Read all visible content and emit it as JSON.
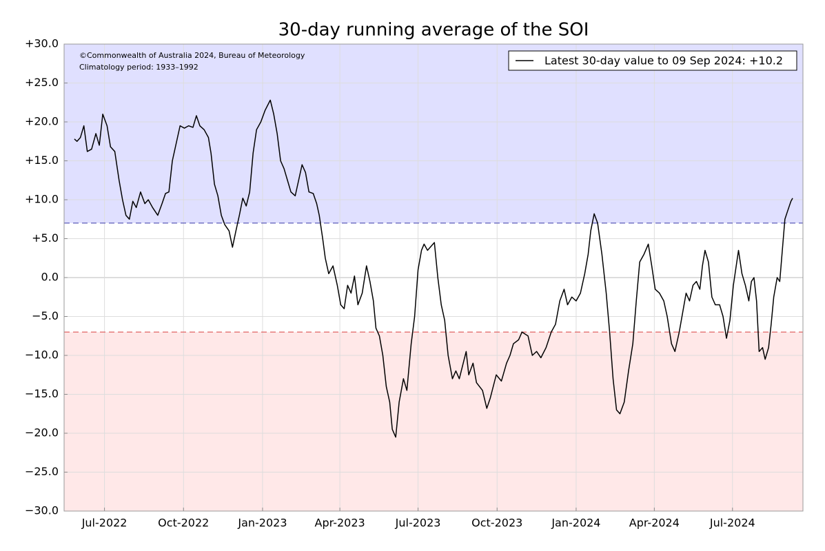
{
  "chart_data": {
    "type": "line",
    "title": "30-day running average of the SOI",
    "annotations": [
      "©Commonwealth of Australia 2024, Bureau of Meteorology",
      "Climatology period: 1933–1992"
    ],
    "legend": "upper right",
    "grid": true,
    "thresholds": [
      {
        "value": 7,
        "color": "#5a5ab8",
        "fill": "#e0e0ff",
        "side": "above"
      },
      {
        "value": -7,
        "color": "#e06060",
        "fill": "#ffe8e8",
        "side": "below"
      }
    ],
    "xlim": [
      "2022-05-15",
      "2024-09-21"
    ],
    "xticks": [
      {
        "value": "2022-07-01",
        "label": "Jul-2022"
      },
      {
        "value": "2022-10-01",
        "label": "Oct-2022"
      },
      {
        "value": "2023-01-01",
        "label": "Jan-2023"
      },
      {
        "value": "2023-04-01",
        "label": "Apr-2023"
      },
      {
        "value": "2023-07-01",
        "label": "Jul-2023"
      },
      {
        "value": "2023-10-01",
        "label": "Oct-2023"
      },
      {
        "value": "2024-01-01",
        "label": "Jan-2024"
      },
      {
        "value": "2024-04-01",
        "label": "Apr-2024"
      },
      {
        "value": "2024-07-01",
        "label": "Jul-2024"
      }
    ],
    "ylim": [
      -30,
      30
    ],
    "yticks": [
      {
        "value": 30,
        "label": "+30.0"
      },
      {
        "value": 25,
        "label": "+25.0"
      },
      {
        "value": 20,
        "label": "+20.0"
      },
      {
        "value": 15,
        "label": "+15.0"
      },
      {
        "value": 10,
        "label": "+10.0"
      },
      {
        "value": 5,
        "label": "+5.0"
      },
      {
        "value": 0,
        "label": "0.0"
      },
      {
        "value": -5,
        "label": "−5.0"
      },
      {
        "value": -10,
        "label": "−10.0"
      },
      {
        "value": -15,
        "label": "−15.0"
      },
      {
        "value": -20,
        "label": "−20.0"
      },
      {
        "value": -25,
        "label": "−25.0"
      },
      {
        "value": -30,
        "label": "−30.0"
      }
    ],
    "x": [
      "2022-05-27",
      "2022-05-30",
      "2022-06-03",
      "2022-06-07",
      "2022-06-11",
      "2022-06-16",
      "2022-06-21",
      "2022-06-25",
      "2022-06-29",
      "2022-07-04",
      "2022-07-08",
      "2022-07-13",
      "2022-07-18",
      "2022-07-22",
      "2022-07-26",
      "2022-07-30",
      "2022-08-03",
      "2022-08-07",
      "2022-08-12",
      "2022-08-17",
      "2022-08-21",
      "2022-08-26",
      "2022-09-01",
      "2022-09-06",
      "2022-09-10",
      "2022-09-14",
      "2022-09-18",
      "2022-09-22",
      "2022-09-27",
      "2022-10-02",
      "2022-10-07",
      "2022-10-12",
      "2022-10-16",
      "2022-10-20",
      "2022-10-25",
      "2022-10-30",
      "2022-11-02",
      "2022-11-06",
      "2022-11-10",
      "2022-11-14",
      "2022-11-18",
      "2022-11-23",
      "2022-11-27",
      "2022-12-01",
      "2022-12-05",
      "2022-12-09",
      "2022-12-13",
      "2022-12-17",
      "2022-12-21",
      "2022-12-25",
      "2022-12-30",
      "2023-01-04",
      "2023-01-10",
      "2023-01-14",
      "2023-01-18",
      "2023-01-22",
      "2023-01-26",
      "2023-01-30",
      "2023-02-03",
      "2023-02-08",
      "2023-02-12",
      "2023-02-16",
      "2023-02-20",
      "2023-02-24",
      "2023-03-01",
      "2023-03-05",
      "2023-03-08",
      "2023-03-12",
      "2023-03-15",
      "2023-03-19",
      "2023-03-24",
      "2023-03-29",
      "2023-04-02",
      "2023-04-06",
      "2023-04-10",
      "2023-04-14",
      "2023-04-18",
      "2023-04-22",
      "2023-04-27",
      "2023-05-02",
      "2023-05-06",
      "2023-05-10",
      "2023-05-13",
      "2023-05-17",
      "2023-05-21",
      "2023-05-25",
      "2023-05-29",
      "2023-06-01",
      "2023-06-05",
      "2023-06-09",
      "2023-06-14",
      "2023-06-18",
      "2023-06-23",
      "2023-06-27",
      "2023-07-01",
      "2023-07-05",
      "2023-07-08",
      "2023-07-12",
      "2023-07-20",
      "2023-07-24",
      "2023-07-28",
      "2023-08-01",
      "2023-08-05",
      "2023-08-10",
      "2023-08-14",
      "2023-08-18",
      "2023-08-26",
      "2023-08-29",
      "2023-09-03",
      "2023-09-07",
      "2023-09-14",
      "2023-09-19",
      "2023-09-23",
      "2023-09-30",
      "2023-10-06",
      "2023-10-12",
      "2023-10-16",
      "2023-10-20",
      "2023-10-26",
      "2023-10-30",
      "2023-11-06",
      "2023-11-11",
      "2023-11-16",
      "2023-11-21",
      "2023-11-27",
      "2023-12-03",
      "2023-12-08",
      "2023-12-13",
      "2023-12-18",
      "2023-12-22",
      "2023-12-27",
      "2024-01-01",
      "2024-01-06",
      "2024-01-11",
      "2024-01-15",
      "2024-01-18",
      "2024-01-22",
      "2024-01-26",
      "2024-01-31",
      "2024-02-05",
      "2024-02-09",
      "2024-02-13",
      "2024-02-17",
      "2024-02-21",
      "2024-02-26",
      "2024-03-02",
      "2024-03-07",
      "2024-03-11",
      "2024-03-15",
      "2024-03-20",
      "2024-03-25",
      "2024-03-29",
      "2024-04-02",
      "2024-04-07",
      "2024-04-12",
      "2024-04-16",
      "2024-04-21",
      "2024-04-25",
      "2024-04-30",
      "2024-05-04",
      "2024-05-08",
      "2024-05-12",
      "2024-05-16",
      "2024-05-20",
      "2024-05-24",
      "2024-05-27",
      "2024-05-30",
      "2024-06-03",
      "2024-06-07",
      "2024-06-11",
      "2024-06-16",
      "2024-06-20",
      "2024-06-24",
      "2024-06-28",
      "2024-07-02",
      "2024-07-08",
      "2024-07-12",
      "2024-07-16",
      "2024-07-20",
      "2024-07-23",
      "2024-07-26",
      "2024-07-29",
      "2024-08-01",
      "2024-08-05",
      "2024-08-08",
      "2024-08-12",
      "2024-08-15",
      "2024-08-18",
      "2024-08-22",
      "2024-08-25",
      "2024-08-28",
      "2024-08-31",
      "2024-09-03",
      "2024-09-07",
      "2024-09-09"
    ],
    "series": [
      {
        "name": "Latest 30-day value to 09 Sep 2024: +10.2",
        "color": "#000000",
        "values": [
          17.8,
          17.5,
          18,
          19.5,
          16.2,
          16.5,
          18.5,
          17,
          21,
          19.5,
          16.8,
          16.2,
          12.5,
          10,
          8,
          7.5,
          9.8,
          9,
          11,
          9.5,
          10,
          9,
          8,
          9.5,
          10.8,
          11,
          15,
          17,
          19.5,
          19.2,
          19.5,
          19.3,
          20.8,
          19.5,
          19,
          18,
          16,
          12,
          10.5,
          8,
          6.8,
          6,
          3.9,
          6,
          8,
          10.2,
          9.2,
          11,
          16,
          19,
          20,
          21.5,
          22.8,
          21,
          18.5,
          15,
          14,
          12.5,
          11,
          10.5,
          12.5,
          14.5,
          13.5,
          11,
          10.8,
          9.5,
          8,
          5,
          2.5,
          0.5,
          1.5,
          -1,
          -3.5,
          -4,
          -1,
          -2,
          0.2,
          -3.5,
          -2,
          1.5,
          -0.5,
          -3,
          -6.5,
          -7.5,
          -10,
          -14,
          -16,
          -19.5,
          -20.5,
          -16,
          -13,
          -14.5,
          -8.5,
          -5,
          1,
          3.5,
          4.3,
          3.5,
          4.5,
          0,
          -3.5,
          -5.5,
          -10,
          -13,
          -12,
          -13,
          -9.5,
          -12.5,
          -11,
          -13.5,
          -14.5,
          -16.8,
          -15.5,
          -12.5,
          -13.3,
          -11,
          -10,
          -8.5,
          -8,
          -7,
          -7.5,
          -10,
          -9.5,
          -10.3,
          -9,
          -7,
          -6,
          -3,
          -1.5,
          -3.5,
          -2.5,
          -3,
          -2,
          0.5,
          3,
          6,
          8.2,
          7,
          3,
          -2,
          -7,
          -13,
          -17,
          -17.5,
          -16,
          -12,
          -8.5,
          -3,
          2,
          3,
          4.3,
          1.5,
          -1.5,
          -2,
          -3,
          -5,
          -8.5,
          -9.5,
          -7,
          -4.5,
          -2,
          -3,
          -1,
          -0.5,
          -1.5,
          1.5,
          3.5,
          2,
          -2.5,
          -3.5,
          -3.5,
          -5,
          -7.8,
          -5.5,
          -1,
          3.5,
          0.5,
          -1,
          -3,
          -0.5,
          0,
          -3,
          -9.5,
          -9,
          -10.5,
          -9,
          -6,
          -2.5,
          0,
          -0.5,
          3.5,
          7.5,
          8.5,
          9.8,
          10.2
        ]
      }
    ]
  }
}
